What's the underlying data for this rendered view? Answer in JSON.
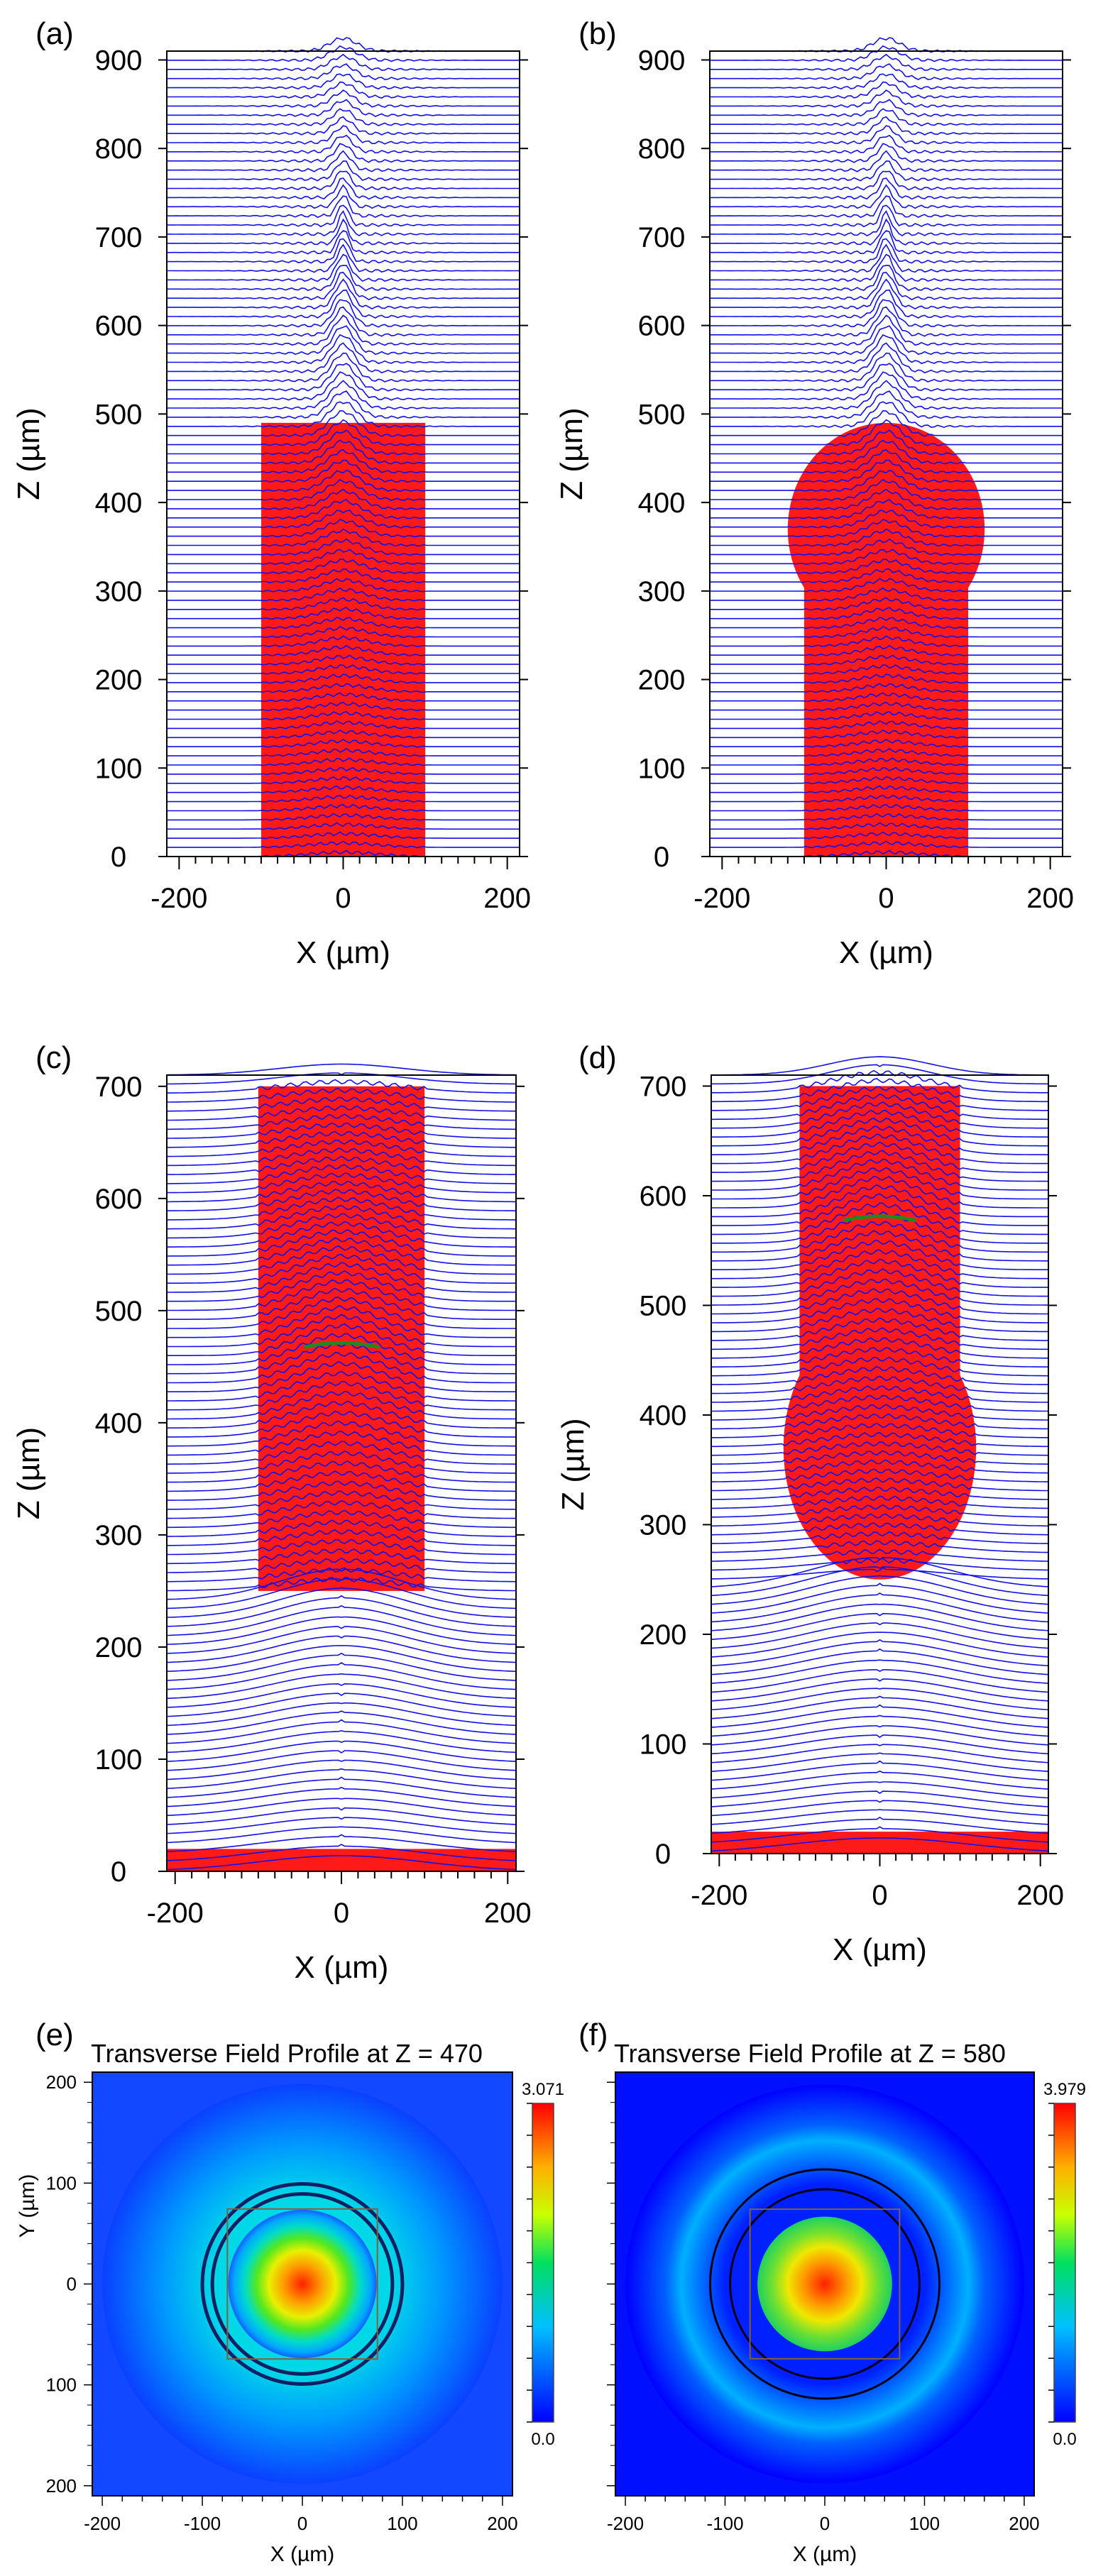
{
  "figure": {
    "panels": [
      {
        "label": "(a)",
        "xlabel": "X (µm)",
        "ylabel": "Z (µm)"
      },
      {
        "label": "(b)",
        "xlabel": "X (µm)",
        "ylabel": "Z (µm)"
      },
      {
        "label": "(c)",
        "xlabel": "X (µm)",
        "ylabel": "Z (µm)"
      },
      {
        "label": "(d)",
        "xlabel": "X (µm)",
        "ylabel": "Z (µm)"
      },
      {
        "label": "(e)",
        "title": "Transverse Field Profile at Z = 470",
        "xlabel": "X (µm)",
        "ylabel": "Y (µm)",
        "colorbar_max": "3.071",
        "colorbar_min": "0.0"
      },
      {
        "label": "(f)",
        "title": "Transverse Field Profile at Z = 580",
        "xlabel": "X (µm)",
        "colorbar_max": "3.979",
        "colorbar_min": "0.0"
      }
    ]
  },
  "colors": {
    "trace": "#1010e8",
    "core": "#ff1a1a",
    "focus": "#1f8a1f",
    "axis": "#000000"
  },
  "chart_data": [
    {
      "type": "line",
      "id": "a",
      "title": "",
      "xlabel": "X (µm)",
      "ylabel": "Z (µm)",
      "xlim": [
        -215,
        215
      ],
      "ylim": [
        0,
        910
      ],
      "xticks": [
        -200,
        0,
        200
      ],
      "yticks": [
        0,
        100,
        200,
        300,
        400,
        500,
        600,
        700,
        800,
        900
      ],
      "structure": {
        "shape": "cylinder",
        "x": [
          -100,
          100
        ],
        "z": [
          0,
          490
        ]
      },
      "focus_z": null,
      "field_waist_um": 6
    },
    {
      "type": "line",
      "id": "b",
      "title": "",
      "xlabel": "X (µm)",
      "ylabel": "Z (µm)",
      "xlim": [
        -215,
        215
      ],
      "ylim": [
        0,
        910
      ],
      "xticks": [
        -200,
        0,
        200
      ],
      "yticks": [
        0,
        100,
        200,
        300,
        400,
        500,
        600,
        700,
        800,
        900
      ],
      "structure": {
        "shape": "cylinder+ball",
        "x": [
          -100,
          100
        ],
        "z": [
          0,
          320
        ],
        "ball_center_z": 370,
        "ball_radius": 120
      },
      "focus_z": null,
      "field_waist_um": 6
    },
    {
      "type": "line",
      "id": "c",
      "title": "",
      "xlabel": "X (µm)",
      "ylabel": "Z (µm)",
      "xlim": [
        -210,
        210
      ],
      "ylim": [
        0,
        710
      ],
      "xticks": [
        -200,
        0,
        200
      ],
      "yticks": [
        0,
        100,
        200,
        300,
        400,
        500,
        600,
        700
      ],
      "structure": {
        "shape": "cylinder",
        "x": [
          -100,
          100
        ],
        "z": [
          250,
          700
        ],
        "substrate_z": [
          0,
          20
        ]
      },
      "focus_z": 470,
      "field_waist_um": 60
    },
    {
      "type": "line",
      "id": "d",
      "title": "",
      "xlabel": "X (µm)",
      "ylabel": "Z (µm)",
      "xlim": [
        -210,
        210
      ],
      "ylim": [
        0,
        710
      ],
      "xticks": [
        -200,
        0,
        200
      ],
      "yticks": [
        0,
        100,
        200,
        300,
        400,
        500,
        600,
        700
      ],
      "structure": {
        "shape": "cylinder+ball",
        "x": [
          -100,
          100
        ],
        "z": [
          430,
          700
        ],
        "ball_center_z": 370,
        "ball_radius": 120,
        "substrate_z": [
          0,
          20
        ]
      },
      "focus_z": 580,
      "field_waist_um": 60
    },
    {
      "type": "heatmap",
      "id": "e",
      "title": "Transverse Field Profile at Z = 470",
      "xlabel": "X (µm)",
      "ylabel": "Y (µm)",
      "xlim": [
        -210,
        210
      ],
      "ylim": [
        -210,
        210
      ],
      "xticks": [
        -200,
        -100,
        0,
        100,
        200
      ],
      "yticks": [
        200,
        100,
        0,
        100,
        200
      ],
      "peak": 3.071,
      "min": 0.0,
      "spot_radius_um": 55,
      "ring_radii_um": [
        90,
        100
      ],
      "box_halfwidth_um": 75
    },
    {
      "type": "heatmap",
      "id": "f",
      "title": "Transverse Field Profile at Z = 580",
      "xlabel": "X (µm)",
      "ylabel": "",
      "xlim": [
        -210,
        210
      ],
      "ylim": [
        -210,
        210
      ],
      "xticks": [
        -200,
        -100,
        0,
        100,
        200
      ],
      "yticks": [],
      "peak": 3.979,
      "min": 0.0,
      "spot_radius_um": 50,
      "ring_radii_um": [
        95,
        115
      ],
      "box_halfwidth_um": 75
    }
  ]
}
